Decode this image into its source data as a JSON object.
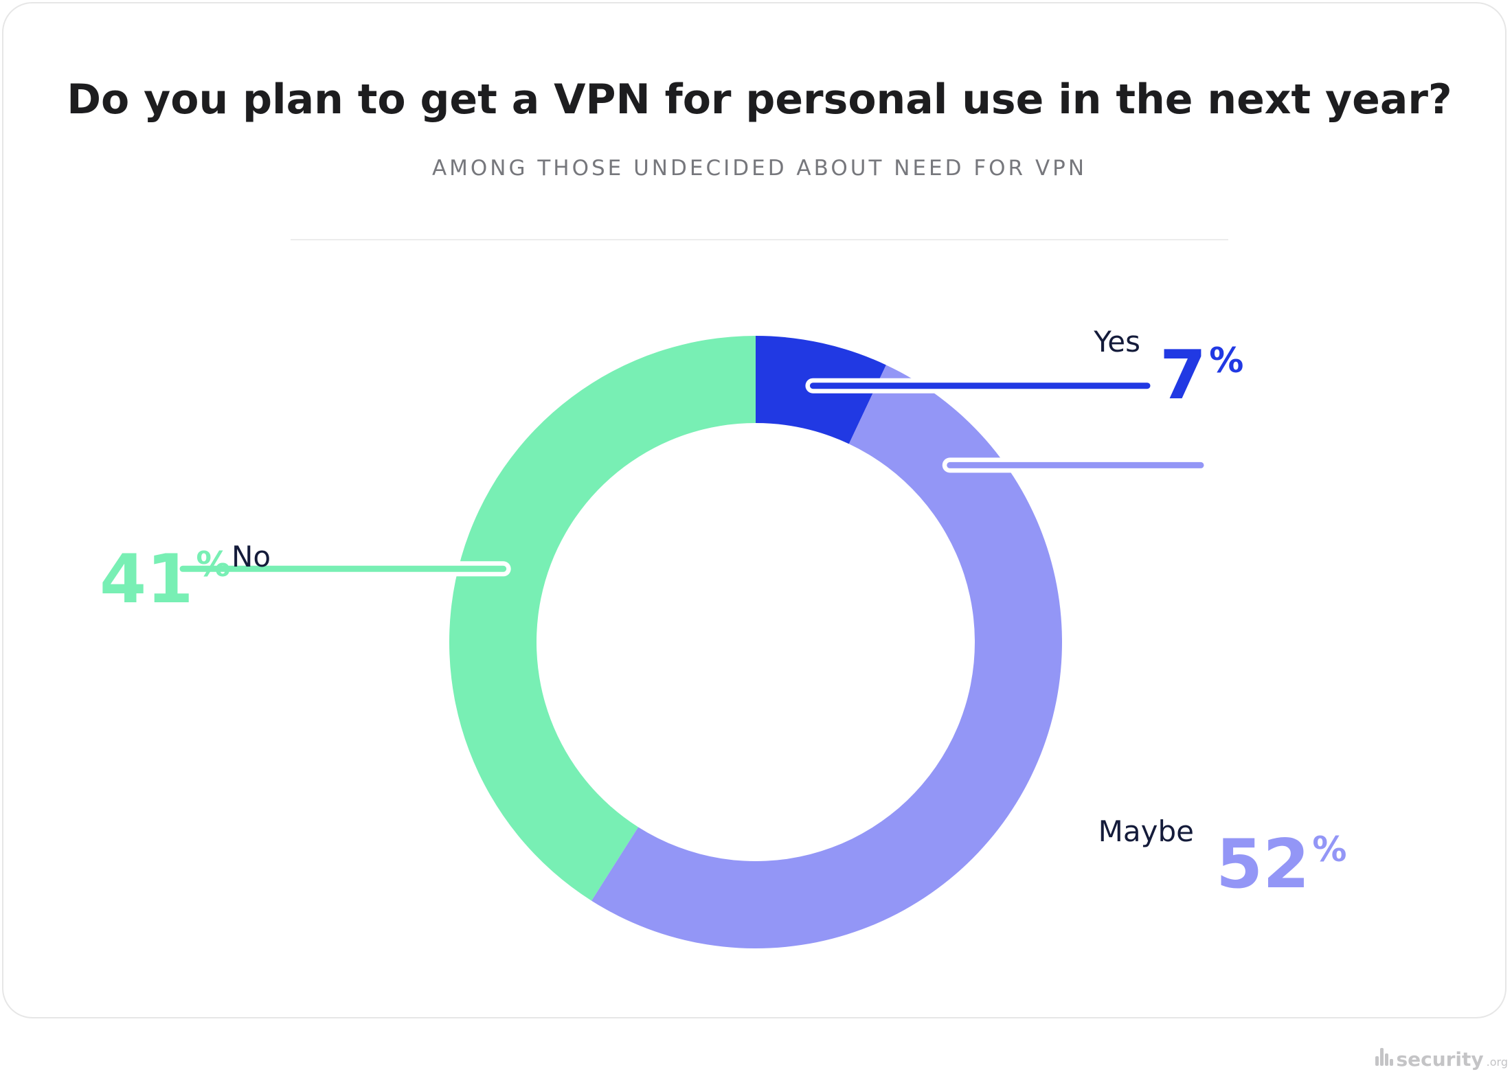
{
  "chart_data": {
    "type": "pie",
    "donut": true,
    "title": "Do you plan to get a VPN for personal use in the next year?",
    "subtitle": "AMONG THOSE UNDECIDED ABOUT NEED FOR VPN",
    "unit": "%",
    "slices": [
      {
        "label": "Yes",
        "value": 7,
        "color": "#2139e3"
      },
      {
        "label": "Maybe",
        "value": 52,
        "color": "#9396f6"
      },
      {
        "label": "No",
        "value": 41,
        "color": "#78efb4"
      }
    ]
  },
  "watermark": {
    "name": "security",
    "tld": ".org"
  }
}
